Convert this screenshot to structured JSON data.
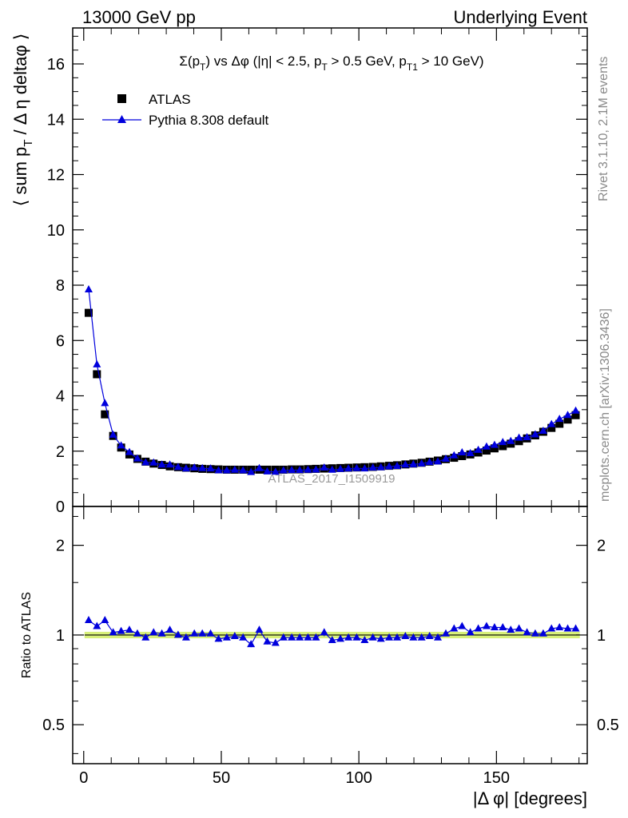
{
  "header": {
    "left": "13000 GeV pp",
    "right": "Underlying Event"
  },
  "side_labels": {
    "rivet": "Rivet 3.1.10,  2.1M events",
    "mcplots": "mcplots.cern.ch [arXiv:1306.3436]"
  },
  "watermark": "ATLAS_2017_I1509919",
  "colors": {
    "data": "#000000",
    "mc": "#0000dd",
    "band": "#d8f07a",
    "watermark": "#9a9a9a"
  },
  "chart_data": [
    {
      "type": "scatter",
      "title": "Σ(pT) vs Δφ (|η| < 2.5, pT > 0.5 GeV, pT1 > 10 GeV)",
      "xlabel": "|Δ φ| [degrees]",
      "ylabel": "⟨ sum pT / Δ η deltaφ ⟩",
      "xlim": [
        -4,
        183
      ],
      "ylim": [
        0,
        17.3
      ],
      "y_ticks": [
        "0",
        "2",
        "4",
        "6",
        "8",
        "10",
        "12",
        "14",
        "16"
      ],
      "x": [
        1.8,
        4.8,
        7.7,
        10.7,
        13.6,
        16.6,
        19.5,
        22.5,
        25.4,
        28.4,
        31.3,
        34.3,
        37.2,
        40.2,
        43.1,
        46.1,
        49.0,
        52.0,
        54.9,
        57.9,
        60.8,
        63.8,
        66.7,
        69.7,
        72.6,
        75.6,
        78.5,
        81.5,
        84.4,
        87.4,
        90.3,
        93.3,
        96.2,
        99.2,
        102.1,
        105.1,
        108.0,
        111.0,
        113.9,
        116.9,
        119.8,
        122.8,
        125.7,
        128.7,
        131.6,
        134.6,
        137.5,
        140.5,
        143.4,
        146.4,
        149.3,
        152.3,
        155.2,
        158.2,
        161.1,
        164.1,
        167.0,
        170.0,
        172.9,
        175.9,
        178.8
      ],
      "series": [
        {
          "name": "ATLAS",
          "marker": "square",
          "values": [
            7.0,
            4.78,
            3.33,
            2.55,
            2.13,
            1.88,
            1.72,
            1.62,
            1.55,
            1.5,
            1.45,
            1.42,
            1.4,
            1.38,
            1.36,
            1.35,
            1.34,
            1.33,
            1.33,
            1.33,
            1.33,
            1.33,
            1.33,
            1.33,
            1.33,
            1.34,
            1.34,
            1.35,
            1.36,
            1.37,
            1.38,
            1.39,
            1.4,
            1.41,
            1.42,
            1.43,
            1.45,
            1.47,
            1.49,
            1.52,
            1.55,
            1.58,
            1.62,
            1.66,
            1.71,
            1.76,
            1.82,
            1.88,
            1.95,
            2.02,
            2.1,
            2.18,
            2.27,
            2.36,
            2.46,
            2.57,
            2.7,
            2.84,
            2.99,
            3.14,
            3.3
          ]
        },
        {
          "name": "Pythia 8.308 default",
          "marker": "triangle",
          "values": [
            7.84,
            5.13,
            3.73,
            2.59,
            2.2,
            1.96,
            1.73,
            1.59,
            1.58,
            1.51,
            1.51,
            1.42,
            1.37,
            1.4,
            1.38,
            1.37,
            1.3,
            1.3,
            1.32,
            1.3,
            1.24,
            1.38,
            1.26,
            1.25,
            1.3,
            1.31,
            1.31,
            1.32,
            1.33,
            1.4,
            1.32,
            1.35,
            1.37,
            1.38,
            1.37,
            1.4,
            1.41,
            1.44,
            1.46,
            1.51,
            1.52,
            1.55,
            1.6,
            1.62,
            1.72,
            1.84,
            1.95,
            1.92,
            2.04,
            2.16,
            2.22,
            2.32,
            2.36,
            2.48,
            2.5,
            2.6,
            2.73,
            2.97,
            3.16,
            3.3,
            3.46
          ],
          "errors": [
            0.02,
            0.02,
            0.02,
            0.02,
            0.02,
            0.02,
            0.02,
            0.02,
            0.02,
            0.02,
            0.02,
            0.02,
            0.02,
            0.02,
            0.02,
            0.02,
            0.02,
            0.02,
            0.02,
            0.02,
            0.02,
            0.02,
            0.02,
            0.02,
            0.02,
            0.02,
            0.02,
            0.02,
            0.02,
            0.03,
            0.02,
            0.02,
            0.02,
            0.02,
            0.02,
            0.02,
            0.02,
            0.02,
            0.02,
            0.02,
            0.02,
            0.02,
            0.02,
            0.02,
            0.02,
            0.02,
            0.02,
            0.02,
            0.02,
            0.02,
            0.02,
            0.02,
            0.02,
            0.02,
            0.02,
            0.02,
            0.02,
            0.03,
            0.03,
            0.03,
            0.04
          ]
        }
      ],
      "legend": "top-left"
    },
    {
      "type": "scatter",
      "xlabel": "|Δ φ| [degrees]",
      "ylabel": "Ratio to ATLAS",
      "xlim": [
        -4,
        183
      ],
      "x_ticks": [
        "0",
        "50",
        "100",
        "150"
      ],
      "y_scale": "log",
      "ylim": [
        0.37,
        2.7
      ],
      "y_ticks": [
        "0.5",
        "1",
        "2"
      ],
      "band": {
        "name": "ATLAS uncertainty",
        "low": 0.975,
        "high": 1.025
      },
      "series": [
        {
          "name": "Pythia 8.308 default",
          "values": [
            1.12,
            1.07,
            1.12,
            1.02,
            1.03,
            1.04,
            1.01,
            0.98,
            1.02,
            1.01,
            1.04,
            1.0,
            0.98,
            1.01,
            1.01,
            1.01,
            0.97,
            0.98,
            0.99,
            0.98,
            0.93,
            1.04,
            0.95,
            0.94,
            0.98,
            0.98,
            0.98,
            0.98,
            0.98,
            1.02,
            0.96,
            0.97,
            0.98,
            0.98,
            0.96,
            0.98,
            0.97,
            0.98,
            0.98,
            0.99,
            0.98,
            0.98,
            0.99,
            0.98,
            1.01,
            1.05,
            1.07,
            1.02,
            1.05,
            1.07,
            1.06,
            1.06,
            1.04,
            1.05,
            1.02,
            1.01,
            1.01,
            1.05,
            1.06,
            1.05,
            1.05
          ],
          "errors": [
            0.02,
            0.02,
            0.02,
            0.02,
            0.02,
            0.02,
            0.02,
            0.02,
            0.02,
            0.02,
            0.02,
            0.02,
            0.02,
            0.02,
            0.02,
            0.02,
            0.02,
            0.02,
            0.02,
            0.02,
            0.02,
            0.02,
            0.02,
            0.02,
            0.02,
            0.02,
            0.02,
            0.02,
            0.02,
            0.03,
            0.02,
            0.02,
            0.02,
            0.02,
            0.02,
            0.02,
            0.02,
            0.02,
            0.02,
            0.02,
            0.02,
            0.02,
            0.02,
            0.02,
            0.02,
            0.02,
            0.02,
            0.02,
            0.02,
            0.02,
            0.02,
            0.02,
            0.02,
            0.02,
            0.02,
            0.02,
            0.02,
            0.02,
            0.02,
            0.02,
            0.02
          ]
        }
      ]
    }
  ]
}
